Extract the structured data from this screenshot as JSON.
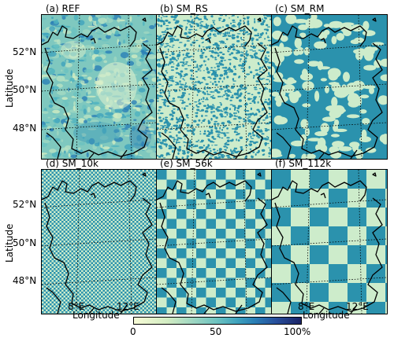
{
  "panels": [
    {
      "id": "a",
      "title": "(a) REF",
      "pattern": "ref"
    },
    {
      "id": "b",
      "title": "(b) SM_RS",
      "pattern": "rs"
    },
    {
      "id": "c",
      "title": "(c) SM_RM",
      "pattern": "rm"
    },
    {
      "id": "d",
      "title": "(d) SM_10k",
      "pattern": "checker10"
    },
    {
      "id": "e",
      "title": "(e) SM_56k",
      "pattern": "checker56"
    },
    {
      "id": "f",
      "title": "(f) SM_112k",
      "pattern": "checker112"
    }
  ],
  "axes": {
    "ylabel": "Latitude",
    "xlabel": "Longitude",
    "lat_ticks": [
      "52°N",
      "50°N",
      "48°N"
    ],
    "lon_ticks": [
      "8°E",
      "12°E"
    ]
  },
  "colorbar": {
    "ticks": [
      "0",
      "50",
      "100%"
    ],
    "range": [
      0,
      100
    ],
    "colors": [
      "#f7fbd6",
      "#9fd7c2",
      "#3ea2bd",
      "#274f9c",
      "#1b2366"
    ]
  },
  "palette": {
    "light": "#cdeccb",
    "dark": "#2b92ad",
    "border": "#000000"
  }
}
